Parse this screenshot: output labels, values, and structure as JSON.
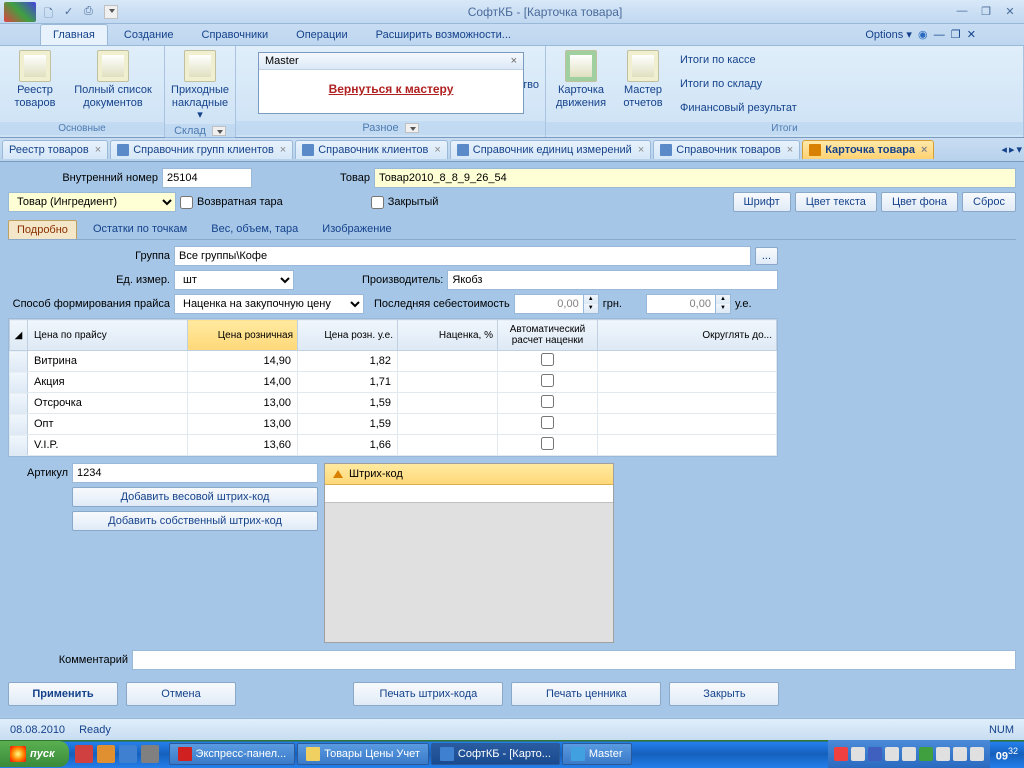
{
  "titlebar": {
    "title": "СофтКБ - [Карточка товара]"
  },
  "ribbonTabs": {
    "t0": "Главная",
    "t1": "Создание",
    "t2": "Справочники",
    "t3": "Операции",
    "t4": "Расширить возможности...",
    "options": "Options"
  },
  "ribbon": {
    "g0": {
      "b0": "Реестр товаров",
      "b1": "Полный список документов",
      "label": "Основные"
    },
    "g1": {
      "b0": "Приходные накладные",
      "label": "Склад"
    },
    "g2": {
      "label": "Разное",
      "b0": "оизводство"
    },
    "g3": {
      "b0": "Карточка движения",
      "b1": "Мастер отчетов",
      "l0": "Итоги по кассе",
      "l1": "Итоги по складу",
      "l2": "Финансовый результат",
      "label": "Итоги"
    }
  },
  "master": {
    "title": "Master",
    "link": "Вернуться к мастеру"
  },
  "docTabs": {
    "t0": "Реестр товаров",
    "t1": "Справочник групп клиентов",
    "t2": "Справочник клиентов",
    "t3": "Справочник единиц измерений",
    "t4": "Справочник товаров",
    "t5": "Карточка товара"
  },
  "form": {
    "innerNum_lbl": "Внутренний номер",
    "innerNum": "25104",
    "tovar_lbl": "Товар",
    "tovar": "Товар2010_8_8_9_26_54",
    "type": "Товар (Ингредиент)",
    "returnable": "Возвратная тара",
    "closed": "Закрытый",
    "fontBtn": "Шрифт",
    "textColorBtn": "Цвет текста",
    "bgColorBtn": "Цвет фона",
    "resetBtn": "Сброс"
  },
  "subTabs": {
    "t0": "Подробно",
    "t1": "Остатки по точкам",
    "t2": "Вес, объем, тара",
    "t3": "Изображение"
  },
  "detail": {
    "group_lbl": "Группа",
    "group": "Все группы\\Кофе",
    "unit_lbl": "Ед. измер.",
    "unit": "шт",
    "mfr_lbl": "Производитель:",
    "mfr": "Якобз",
    "priceMethod_lbl": "Способ формирования прайса",
    "priceMethod": "Наценка на закупочную цену",
    "lastCost_lbl": "Последняя себестоимость",
    "lastCost": "0,00",
    "grn": "грн.",
    "lastCostUe": "0,00",
    "ue": "у.е."
  },
  "grid": {
    "h0": "Цена по прайсу",
    "h1": "Цена розничная",
    "h2": "Цена розн. у.е.",
    "h3": "Наценка, %",
    "h4": "Автоматический расчет наценки",
    "h5": "Округлять до...",
    "rows": [
      {
        "n": "Витрина",
        "p": "14,90",
        "u": "1,82"
      },
      {
        "n": "Акция",
        "p": "14,00",
        "u": "1,71"
      },
      {
        "n": "Отсрочка",
        "p": "13,00",
        "u": "1,59"
      },
      {
        "n": "Опт",
        "p": "13,00",
        "u": "1,59"
      },
      {
        "n": "V.I.P.",
        "p": "13,60",
        "u": "1,66"
      }
    ]
  },
  "barcode": {
    "art_lbl": "Артикул",
    "art": "1234",
    "addWeight": "Добавить весовой штрих-код",
    "addOwn": "Добавить собственный штрих-код",
    "header": "Штрих-код"
  },
  "comment_lbl": "Комментарий",
  "bottom": {
    "apply": "Применить",
    "cancel": "Отмена",
    "printBarcode": "Печать штрих-кода",
    "printPrice": "Печать ценника",
    "close": "Закрыть"
  },
  "status": {
    "date": "08.08.2010",
    "ready": "Ready",
    "num": "NUM"
  },
  "taskbar": {
    "start": "пуск",
    "t0": "Экспресс-панел...",
    "t1": "Товары Цены Учет",
    "t2": "СофтКБ - [Карто...",
    "t3": "Master",
    "time": "09",
    "min": "32"
  }
}
